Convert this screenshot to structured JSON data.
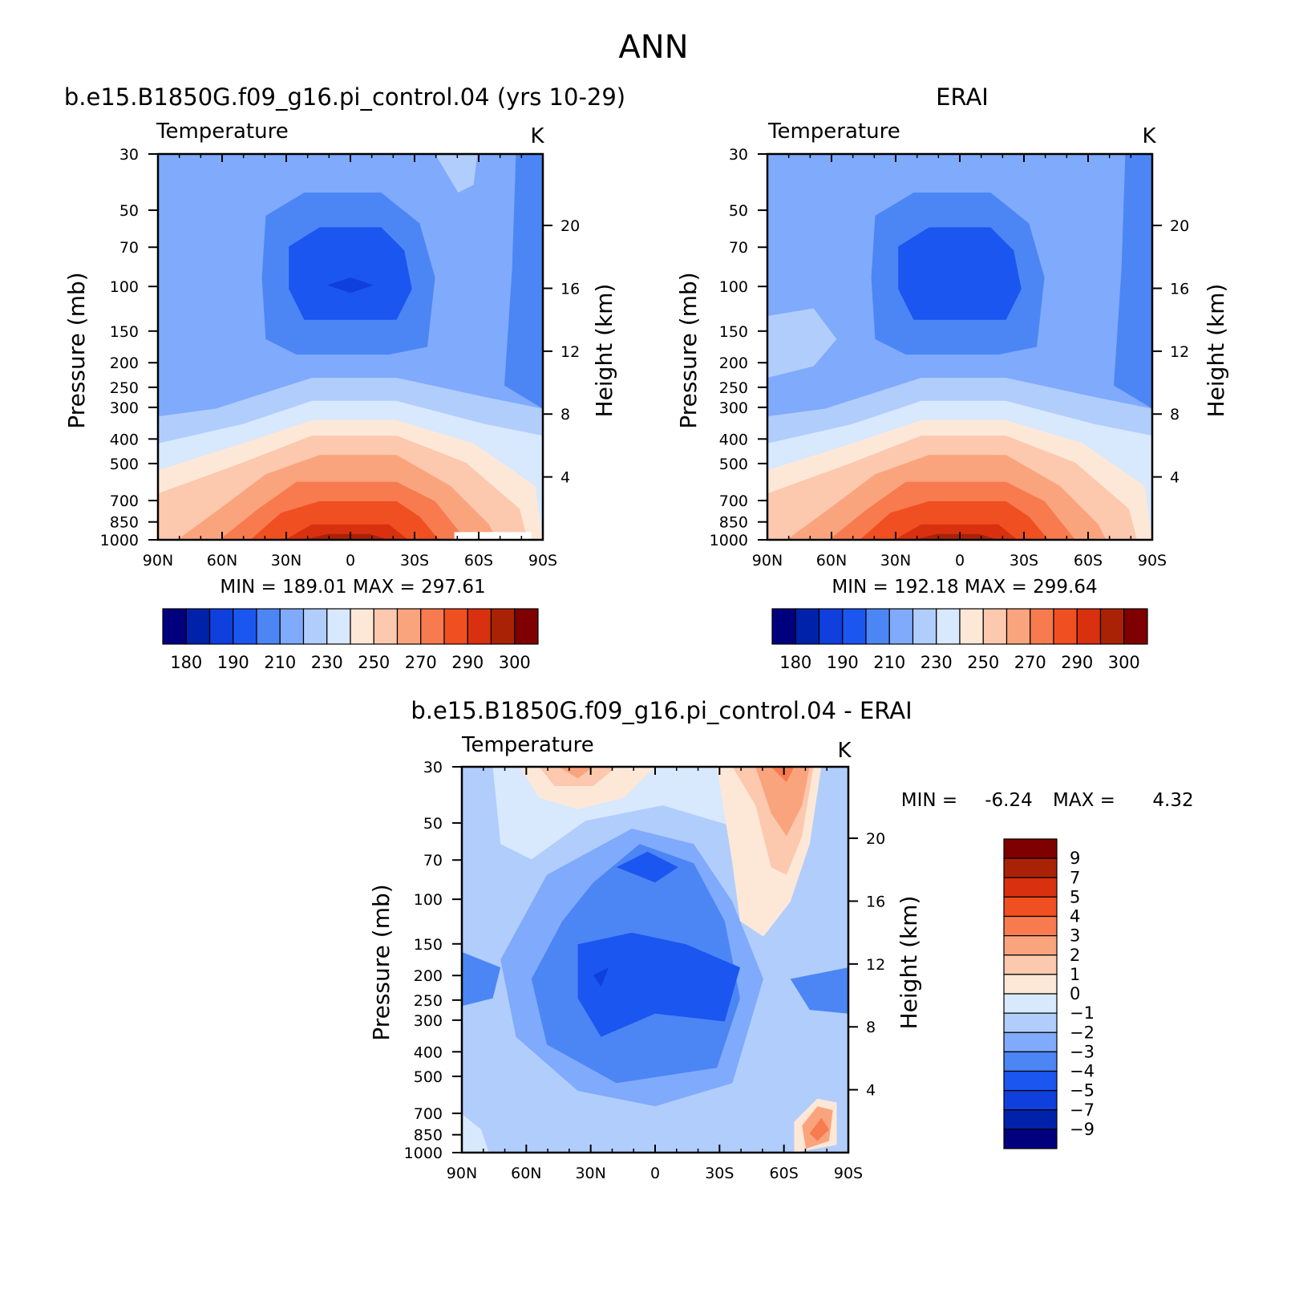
{
  "figure": {
    "title": "ANN"
  },
  "chart_data": [
    {
      "id": "model",
      "type": "heatmap",
      "title": "b.e15.B1850G.f09_g16.pi_control.04 (yrs 10-29)",
      "panel_left_label": "Temperature",
      "panel_right_label": "K",
      "ylabel": "Pressure (mb)",
      "ylabel_right": "Height (km)",
      "x_ticks": [
        "90N",
        "60N",
        "30N",
        "0",
        "30S",
        "60S",
        "90S"
      ],
      "y_ticks": [
        "30",
        "50",
        "70",
        "100",
        "150",
        "200",
        "250",
        "300",
        "400",
        "500",
        "700",
        "850",
        "1000"
      ],
      "y_ticks_right": [
        "4",
        "8",
        "12",
        "16",
        "20"
      ],
      "xlim": [
        90,
        -90
      ],
      "ylim": [
        1000,
        30
      ],
      "log_y": true,
      "stats": "MIN = 189.01 MAX = 297.61",
      "min": 189.01,
      "max": 297.61,
      "colorbar": {
        "labels": [
          "180",
          "190",
          "210",
          "230",
          "250",
          "270",
          "290",
          "300"
        ],
        "colors": [
          "#00007f",
          "#0022aa",
          "#0f3fdc",
          "#1c56f0",
          "#4c86f5",
          "#80aafb",
          "#b1cdfc",
          "#d8e8fd",
          "#fde8d8",
          "#fcc8ae",
          "#faa47e",
          "#f77b4e",
          "#f04f22",
          "#d93010",
          "#aa2206",
          "#7f0000"
        ],
        "levels": [
          175,
          180,
          185,
          190,
          200,
          210,
          220,
          230,
          240,
          250,
          260,
          270,
          280,
          290,
          295,
          300
        ]
      }
    },
    {
      "id": "obs",
      "type": "heatmap",
      "title": "ERAI",
      "panel_left_label": "Temperature",
      "panel_right_label": "K",
      "ylabel": "Pressure (mb)",
      "ylabel_right": "Height (km)",
      "x_ticks": [
        "90N",
        "60N",
        "30N",
        "0",
        "30S",
        "60S",
        "90S"
      ],
      "y_ticks": [
        "30",
        "50",
        "70",
        "100",
        "150",
        "200",
        "250",
        "300",
        "400",
        "500",
        "700",
        "850",
        "1000"
      ],
      "y_ticks_right": [
        "4",
        "8",
        "12",
        "16",
        "20"
      ],
      "xlim": [
        90,
        -90
      ],
      "ylim": [
        1000,
        30
      ],
      "log_y": true,
      "stats": "MIN = 192.18 MAX = 299.64",
      "min": 192.18,
      "max": 299.64,
      "colorbar": {
        "labels": [
          "180",
          "190",
          "210",
          "230",
          "250",
          "270",
          "290",
          "300"
        ],
        "colors": [
          "#00007f",
          "#0022aa",
          "#0f3fdc",
          "#1c56f0",
          "#4c86f5",
          "#80aafb",
          "#b1cdfc",
          "#d8e8fd",
          "#fde8d8",
          "#fcc8ae",
          "#faa47e",
          "#f77b4e",
          "#f04f22",
          "#d93010",
          "#aa2206",
          "#7f0000"
        ],
        "levels": [
          175,
          180,
          185,
          190,
          200,
          210,
          220,
          230,
          240,
          250,
          260,
          270,
          280,
          290,
          295,
          300
        ]
      }
    },
    {
      "id": "diff",
      "type": "heatmap",
      "title": "b.e15.B1850G.f09_g16.pi_control.04 - ERAI",
      "panel_left_label": "Temperature",
      "panel_right_label": "K",
      "ylabel": "Pressure (mb)",
      "ylabel_right": "Height (km)",
      "x_ticks": [
        "90N",
        "60N",
        "30N",
        "0",
        "30S",
        "60S",
        "90S"
      ],
      "y_ticks": [
        "30",
        "50",
        "70",
        "100",
        "150",
        "200",
        "250",
        "300",
        "400",
        "500",
        "700",
        "850",
        "1000"
      ],
      "y_ticks_right": [
        "4",
        "8",
        "12",
        "16",
        "20"
      ],
      "xlim": [
        90,
        -90
      ],
      "ylim": [
        1000,
        30
      ],
      "log_y": true,
      "stats_min_label": "MIN =",
      "stats_min_value": "-6.24",
      "stats_max_label": "MAX =",
      "stats_max_value": "4.32",
      "min": -6.24,
      "max": 4.32,
      "colorbar": {
        "labels": [
          "9",
          "7",
          "5",
          "4",
          "3",
          "2",
          "1",
          "0",
          "-1",
          "-2",
          "-3",
          "-4",
          "-5",
          "-7",
          "-9"
        ],
        "colors": [
          "#7f0000",
          "#aa2206",
          "#d93010",
          "#f04f22",
          "#f77b4e",
          "#faa47e",
          "#fcc8ae",
          "#fde8d8",
          "#d8e8fd",
          "#b1cdfc",
          "#80aafb",
          "#4c86f5",
          "#1c56f0",
          "#0f3fdc",
          "#0022aa",
          "#00007f"
        ],
        "levels": [
          9,
          7,
          5,
          4,
          3,
          2,
          1,
          0,
          -1,
          -2,
          -3,
          -4,
          -5,
          -7,
          -9
        ]
      }
    }
  ]
}
